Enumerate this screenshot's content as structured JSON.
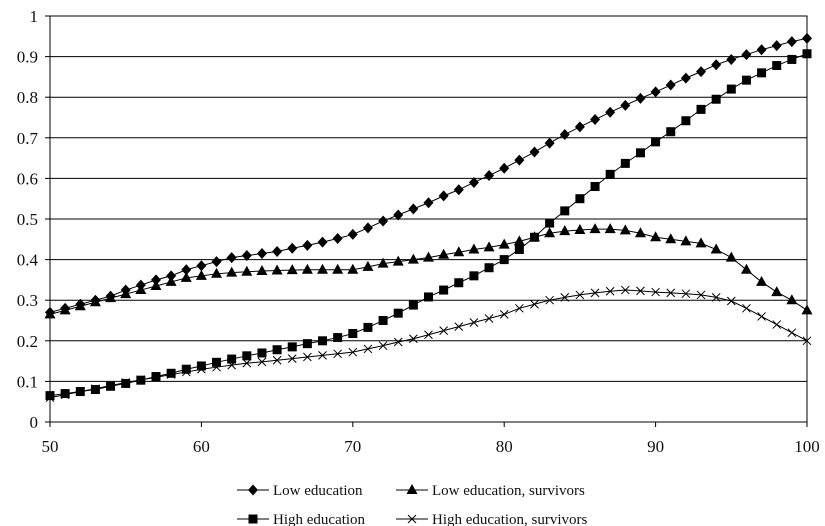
{
  "chart_data": {
    "type": "line",
    "title": "",
    "xlabel": "",
    "ylabel": "",
    "xlim": [
      50,
      100
    ],
    "ylim": [
      0,
      1
    ],
    "x_ticks": [
      "50",
      "60",
      "70",
      "80",
      "90",
      "100"
    ],
    "y_ticks": [
      "0",
      "0.1",
      "0.2",
      "0.3",
      "0.4",
      "0.5",
      "0.6",
      "0.7",
      "0.8",
      "0.9",
      "1"
    ],
    "grid": "horizontal",
    "legend_position": "bottom",
    "x": [
      50,
      51,
      52,
      53,
      54,
      55,
      56,
      57,
      58,
      59,
      60,
      61,
      62,
      63,
      64,
      65,
      66,
      67,
      68,
      69,
      70,
      71,
      72,
      73,
      74,
      75,
      76,
      77,
      78,
      79,
      80,
      81,
      82,
      83,
      84,
      85,
      86,
      87,
      88,
      89,
      90,
      91,
      92,
      93,
      94,
      95,
      96,
      97,
      98,
      99,
      100
    ],
    "series": [
      {
        "name": "Low education",
        "marker": "diamond",
        "values": [
          0.27,
          0.28,
          0.29,
          0.3,
          0.31,
          0.325,
          0.337,
          0.35,
          0.36,
          0.375,
          0.385,
          0.395,
          0.405,
          0.41,
          0.415,
          0.42,
          0.428,
          0.435,
          0.443,
          0.452,
          0.462,
          0.478,
          0.495,
          0.51,
          0.525,
          0.54,
          0.557,
          0.572,
          0.59,
          0.607,
          0.625,
          0.645,
          0.665,
          0.687,
          0.708,
          0.727,
          0.745,
          0.763,
          0.78,
          0.797,
          0.813,
          0.83,
          0.847,
          0.863,
          0.88,
          0.893,
          0.905,
          0.917,
          0.927,
          0.937,
          0.945
        ]
      },
      {
        "name": "Low education, survivors",
        "marker": "triangle",
        "values": [
          0.265,
          0.275,
          0.285,
          0.295,
          0.305,
          0.315,
          0.325,
          0.335,
          0.345,
          0.355,
          0.36,
          0.365,
          0.368,
          0.37,
          0.372,
          0.373,
          0.374,
          0.375,
          0.375,
          0.375,
          0.375,
          0.382,
          0.39,
          0.395,
          0.4,
          0.405,
          0.412,
          0.418,
          0.425,
          0.43,
          0.437,
          0.445,
          0.455,
          0.465,
          0.47,
          0.473,
          0.475,
          0.475,
          0.472,
          0.465,
          0.455,
          0.45,
          0.445,
          0.44,
          0.425,
          0.405,
          0.375,
          0.345,
          0.32,
          0.3,
          0.275
        ]
      },
      {
        "name": "High education",
        "marker": "square",
        "values": [
          0.065,
          0.07,
          0.075,
          0.08,
          0.088,
          0.095,
          0.103,
          0.112,
          0.12,
          0.13,
          0.138,
          0.147,
          0.155,
          0.163,
          0.17,
          0.178,
          0.185,
          0.193,
          0.2,
          0.208,
          0.218,
          0.233,
          0.25,
          0.268,
          0.288,
          0.308,
          0.325,
          0.343,
          0.36,
          0.38,
          0.4,
          0.425,
          0.455,
          0.49,
          0.52,
          0.55,
          0.58,
          0.61,
          0.637,
          0.663,
          0.69,
          0.715,
          0.742,
          0.77,
          0.795,
          0.82,
          0.842,
          0.86,
          0.878,
          0.893,
          0.907
        ]
      },
      {
        "name": "High education, survivors",
        "marker": "x",
        "values": [
          0.06,
          0.067,
          0.075,
          0.082,
          0.09,
          0.097,
          0.104,
          0.11,
          0.117,
          0.123,
          0.13,
          0.135,
          0.14,
          0.145,
          0.148,
          0.152,
          0.156,
          0.16,
          0.164,
          0.168,
          0.172,
          0.18,
          0.188,
          0.197,
          0.205,
          0.215,
          0.225,
          0.235,
          0.245,
          0.255,
          0.265,
          0.28,
          0.29,
          0.3,
          0.307,
          0.313,
          0.318,
          0.322,
          0.325,
          0.323,
          0.32,
          0.318,
          0.316,
          0.313,
          0.307,
          0.298,
          0.28,
          0.26,
          0.24,
          0.22,
          0.2
        ]
      }
    ]
  }
}
